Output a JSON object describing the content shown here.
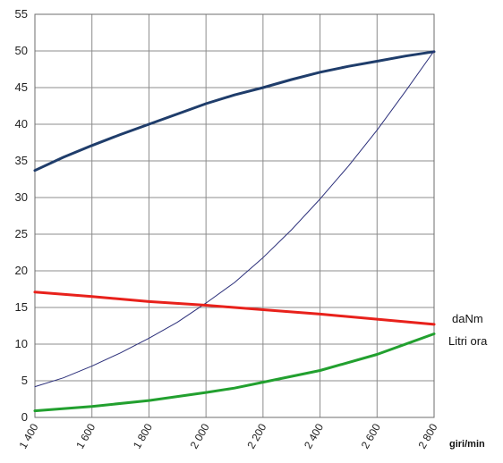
{
  "chart_data": {
    "type": "line",
    "xlabel": "giri/min",
    "x_ticks": [
      "1 400",
      "1 600",
      "1 800",
      "2 000",
      "2 200",
      "2 400",
      "2 600",
      "2 800"
    ],
    "x_range": [
      1400,
      2800
    ],
    "y_ticks": [
      "0",
      "5",
      "10",
      "15",
      "20",
      "25",
      "30",
      "35",
      "40",
      "45",
      "50",
      "55"
    ],
    "ylim": [
      0,
      55
    ],
    "grid": true,
    "side_labels": [
      "daNm",
      "Litri ora"
    ],
    "series": [
      {
        "color": "#1f3d6b",
        "width": 3,
        "points": [
          [
            1400,
            33.7
          ],
          [
            1500,
            35.5
          ],
          [
            1600,
            37.1
          ],
          [
            1700,
            38.6
          ],
          [
            1800,
            40.0
          ],
          [
            1900,
            41.4
          ],
          [
            2000,
            42.8
          ],
          [
            2100,
            44.0
          ],
          [
            2200,
            45.0
          ],
          [
            2300,
            46.1
          ],
          [
            2400,
            47.1
          ],
          [
            2500,
            47.9
          ],
          [
            2600,
            48.6
          ],
          [
            2700,
            49.3
          ],
          [
            2800,
            49.9
          ]
        ]
      },
      {
        "color": "#2b2f7a",
        "width": 1,
        "points": [
          [
            1400,
            4.2
          ],
          [
            1500,
            5.4
          ],
          [
            1600,
            7.0
          ],
          [
            1700,
            8.8
          ],
          [
            1800,
            10.8
          ],
          [
            1900,
            13.0
          ],
          [
            2000,
            15.6
          ],
          [
            2100,
            18.4
          ],
          [
            2200,
            21.8
          ],
          [
            2300,
            25.6
          ],
          [
            2400,
            29.8
          ],
          [
            2500,
            34.3
          ],
          [
            2600,
            39.2
          ],
          [
            2700,
            44.5
          ],
          [
            2800,
            50.0
          ]
        ]
      },
      {
        "color": "#e8211b",
        "width": 3,
        "points": [
          [
            1400,
            17.1
          ],
          [
            1600,
            16.5
          ],
          [
            1800,
            15.8
          ],
          [
            2000,
            15.3
          ],
          [
            2200,
            14.7
          ],
          [
            2400,
            14.1
          ],
          [
            2600,
            13.4
          ],
          [
            2800,
            12.7
          ]
        ]
      },
      {
        "color": "#22a02f",
        "width": 3,
        "points": [
          [
            1400,
            0.9
          ],
          [
            1600,
            1.5
          ],
          [
            1800,
            2.3
          ],
          [
            2000,
            3.4
          ],
          [
            2100,
            4.0
          ],
          [
            2200,
            4.8
          ],
          [
            2400,
            6.4
          ],
          [
            2600,
            8.6
          ],
          [
            2800,
            11.4
          ]
        ]
      }
    ]
  }
}
